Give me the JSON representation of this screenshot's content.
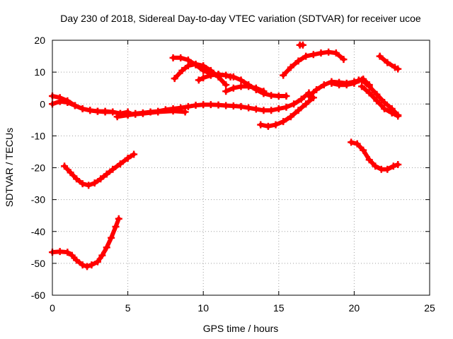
{
  "chart_data": {
    "type": "scatter",
    "title": "Day 230 of 2018, Sidereal Day-to-day VTEC variation (SDTVAR) for receiver ucoe",
    "xlabel": "GPS time / hours",
    "ylabel": "SDTVAR / TECUs",
    "xlim": [
      0,
      25
    ],
    "ylim": [
      -60,
      20
    ],
    "xticks": [
      0,
      5,
      10,
      15,
      20,
      25
    ],
    "yticks": [
      -60,
      -50,
      -40,
      -30,
      -20,
      -10,
      0,
      10,
      20
    ],
    "grid": true,
    "marker": "+",
    "color": "#ff0000",
    "series": [
      {
        "name": "s1",
        "x": [
          0.0,
          0.5,
          1.0,
          1.5,
          2.0,
          2.5,
          3.0,
          3.5,
          4.0,
          4.5,
          5.0,
          5.5,
          6.0,
          6.5,
          7.0,
          7.5,
          8.0,
          8.5,
          9.0,
          9.5,
          10.0,
          10.5,
          11.0,
          11.5,
          12.0,
          12.5,
          13.0,
          13.5,
          14.0,
          14.5,
          15.0,
          15.5,
          16.0,
          16.5,
          17.0
        ],
        "y": [
          2.5,
          2.0,
          1.0,
          -0.5,
          -1.5,
          -2.0,
          -2.3,
          -2.3,
          -2.5,
          -3.0,
          -3.3,
          -3.0,
          -2.8,
          -2.5,
          -2.3,
          -1.8,
          -1.5,
          -1.2,
          -0.8,
          -0.4,
          -0.2,
          -0.2,
          -0.3,
          -0.5,
          -0.6,
          -0.8,
          -1.2,
          -1.6,
          -2.0,
          -2.0,
          -1.5,
          -1.0,
          0.0,
          1.5,
          3.5
        ]
      },
      {
        "name": "s2",
        "x": [
          0.0,
          0.5,
          1.0,
          1.5,
          2.0,
          2.5,
          3.0,
          3.5,
          4.0,
          4.5,
          5.0
        ],
        "y": [
          0.0,
          0.8,
          0.5,
          -0.5,
          -1.5,
          -2.0,
          -2.3,
          -2.5,
          -2.5,
          -3.0,
          -2.5
        ]
      },
      {
        "name": "s3",
        "x": [
          4.3,
          5.0,
          5.5,
          6.0,
          7.0,
          8.0,
          8.8
        ],
        "y": [
          -4.0,
          -3.5,
          -3.2,
          -3.0,
          -2.5,
          -2.2,
          -2.5
        ]
      },
      {
        "name": "s4",
        "x": [
          0.8,
          1.2,
          1.6,
          2.0,
          2.4,
          2.8,
          3.2,
          3.6,
          4.0,
          4.5,
          5.0,
          5.4
        ],
        "y": [
          -19.5,
          -21.5,
          -23.5,
          -25.0,
          -25.5,
          -24.8,
          -23.5,
          -22.0,
          -20.5,
          -18.8,
          -17.0,
          -15.8
        ]
      },
      {
        "name": "s5",
        "x": [
          0.0,
          0.5,
          1.0,
          1.3,
          1.6,
          2.0,
          2.3,
          2.6,
          3.0,
          3.3,
          3.6,
          3.9,
          4.2,
          4.4
        ],
        "y": [
          -46.5,
          -46.3,
          -46.5,
          -47.5,
          -49.0,
          -50.5,
          -51.0,
          -50.5,
          -49.5,
          -47.5,
          -45.0,
          -42.0,
          -38.5,
          -36.0
        ]
      },
      {
        "name": "s6",
        "x": [
          8.0,
          8.5,
          9.0,
          9.5,
          10.0,
          10.5,
          11.0,
          11.5,
          12.0,
          12.5,
          13.0,
          13.5,
          14.0,
          14.5,
          15.0,
          15.5
        ],
        "y": [
          14.5,
          14.5,
          13.8,
          12.3,
          10.5,
          9.5,
          9.2,
          9.0,
          8.5,
          7.5,
          6.0,
          4.5,
          3.3,
          2.7,
          2.5,
          2.5
        ]
      },
      {
        "name": "s7",
        "x": [
          8.1,
          8.6,
          9.0,
          9.5,
          10.0,
          10.5,
          11.0,
          11.5
        ],
        "y": [
          8.0,
          10.5,
          12.0,
          12.5,
          12.0,
          10.5,
          8.5,
          6.0
        ]
      },
      {
        "name": "s8",
        "x": [
          9.7,
          10.0,
          10.5,
          11.0,
          11.5,
          11.8
        ],
        "y": [
          7.5,
          8.2,
          9.0,
          9.3,
          9.0,
          8.5
        ]
      },
      {
        "name": "s9",
        "x": [
          11.5,
          12.0,
          12.5,
          13.0,
          13.5,
          14.0
        ],
        "y": [
          4.0,
          5.0,
          5.5,
          5.5,
          5.0,
          4.0
        ]
      },
      {
        "name": "s10",
        "x": [
          13.8,
          14.3,
          14.8,
          15.3,
          15.8,
          16.3,
          16.8,
          17.3
        ],
        "y": [
          -6.5,
          -7.0,
          -6.5,
          -5.5,
          -4.0,
          -2.0,
          0.0,
          2.0
        ]
      },
      {
        "name": "s11",
        "x": [
          15.3,
          15.8,
          16.3,
          16.8,
          17.3,
          17.8,
          18.3,
          18.8,
          19.3
        ],
        "y": [
          9.0,
          11.5,
          13.5,
          15.0,
          15.5,
          16.0,
          16.3,
          16.0,
          14.0
        ]
      },
      {
        "name": "s12",
        "x": [
          16.4,
          16.6
        ],
        "y": [
          18.5,
          18.5
        ]
      },
      {
        "name": "s13",
        "x": [
          17.0,
          17.5,
          18.0,
          18.5,
          19.0,
          19.5,
          20.0,
          20.5,
          21.0,
          21.5,
          22.0,
          22.5,
          22.9
        ],
        "y": [
          2.5,
          4.5,
          6.0,
          7.0,
          6.8,
          6.5,
          7.0,
          7.5,
          5.5,
          3.0,
          0.5,
          -1.5,
          -3.5
        ]
      },
      {
        "name": "s14",
        "x": [
          18.5,
          19.0,
          19.5,
          20.0,
          20.3,
          20.6,
          21.0
        ],
        "y": [
          6.5,
          6.0,
          6.0,
          6.5,
          7.5,
          7.8,
          6.0
        ]
      },
      {
        "name": "s15",
        "x": [
          20.5,
          21.0,
          21.5,
          22.0,
          22.5,
          22.9
        ],
        "y": [
          5.5,
          3.5,
          1.0,
          -1.5,
          -2.8,
          -3.8
        ]
      },
      {
        "name": "s16",
        "x": [
          21.7,
          22.2,
          22.7,
          22.9
        ],
        "y": [
          15.0,
          13.0,
          11.5,
          11.0
        ]
      },
      {
        "name": "s17",
        "x": [
          19.8,
          20.2,
          20.6,
          21.0,
          21.4,
          21.8,
          22.2,
          22.6,
          22.9
        ],
        "y": [
          -12.0,
          -12.5,
          -14.5,
          -17.5,
          -19.5,
          -20.5,
          -20.5,
          -19.5,
          -19.0
        ]
      }
    ]
  }
}
